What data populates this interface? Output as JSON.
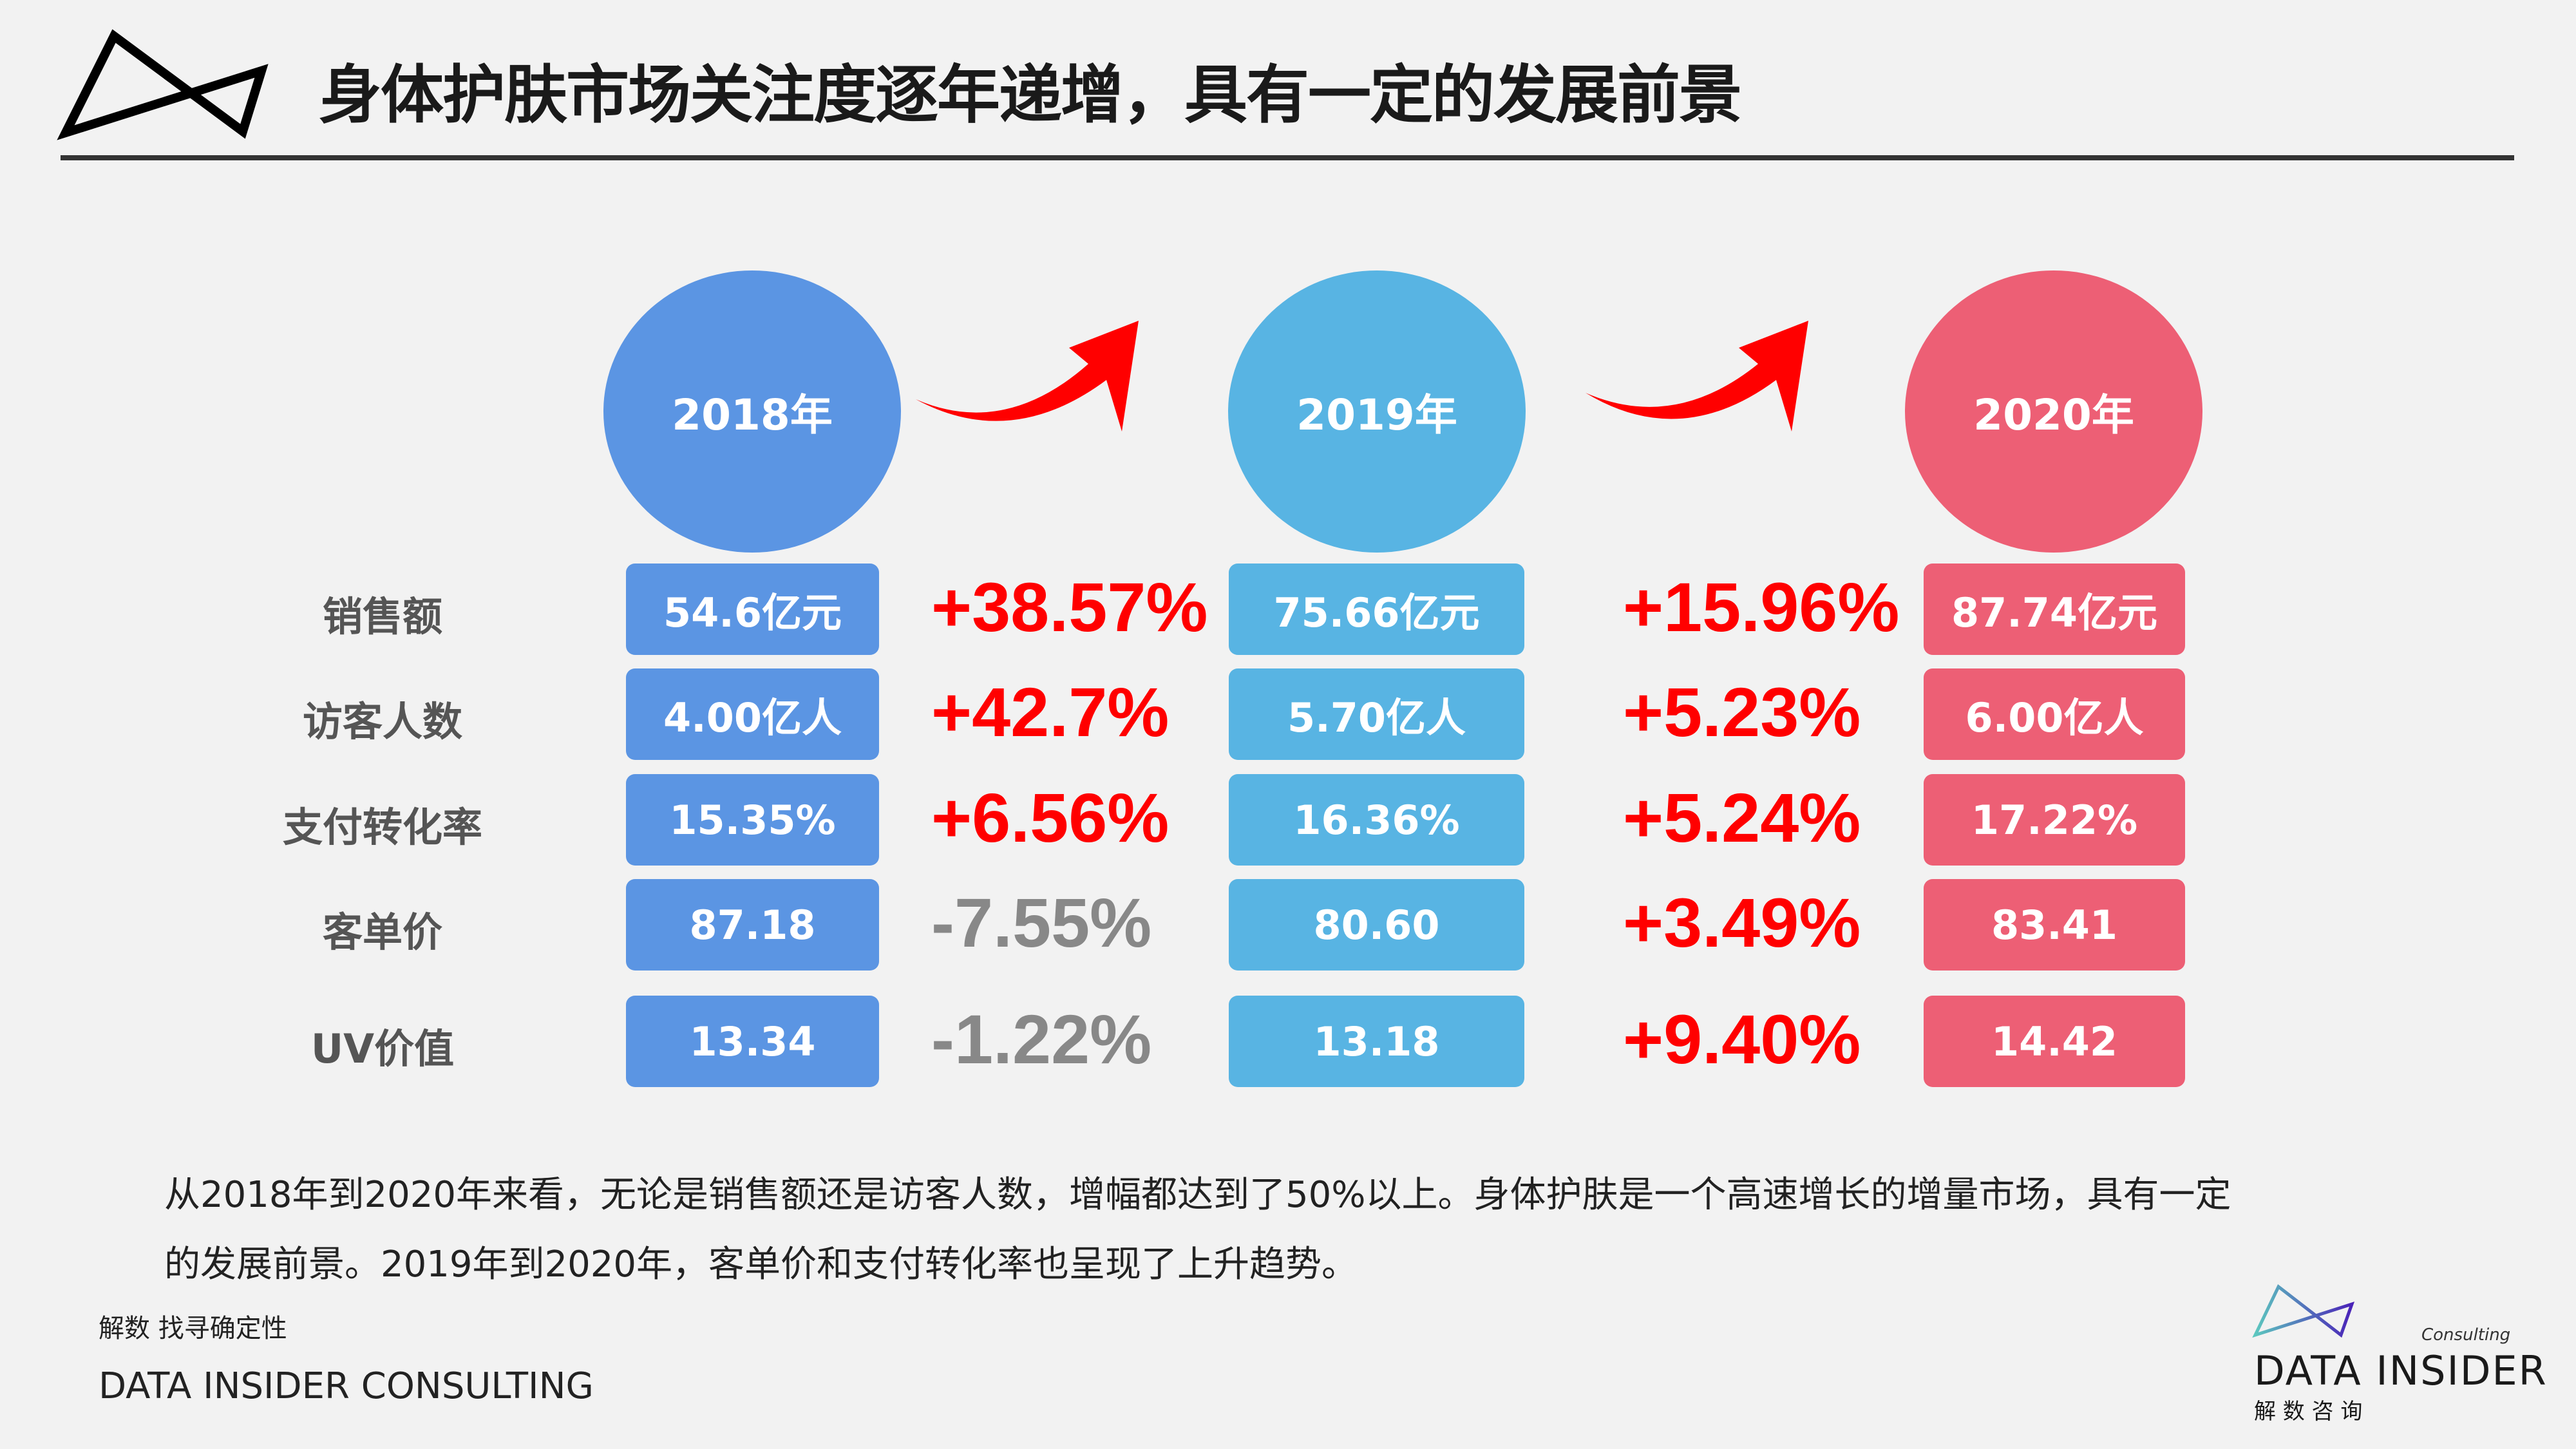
{
  "header": {
    "title": "身体护肤市场关注度逐年递增，具有一定的发展前景"
  },
  "colors": {
    "y2018": "#5b95e3",
    "y2019": "#58b4e3",
    "y2020": "#ed5f75",
    "up": "#ff0000",
    "down": "#888888"
  },
  "years": [
    "2018年",
    "2019年",
    "2020年"
  ],
  "metrics": [
    "销售额",
    "访客人数",
    "支付转化率",
    "客单价",
    "UV价值"
  ],
  "values": {
    "y2018": [
      "54.6亿元",
      "4.00亿人",
      "15.35%",
      "87.18",
      "13.34"
    ],
    "y2019": [
      "75.66亿元",
      "5.70亿人",
      "16.36%",
      "80.60",
      "13.18"
    ],
    "y2020": [
      "87.74亿元",
      "6.00亿人",
      "17.22%",
      "83.41",
      "14.42"
    ]
  },
  "changes": {
    "c2018_2019": [
      "+38.57%",
      "+42.7%",
      "+6.56%",
      "-7.55%",
      "-1.22%"
    ],
    "c2019_2020": [
      "+15.96%",
      "+5.23%",
      "+5.24%",
      "+3.49%",
      "+9.40%"
    ]
  },
  "summary": {
    "line1": "从2018年到2020年来看，无论是销售额还是访客人数，增幅都达到了50%以上。身体护肤是一个高速增长的增量市场，具有一定",
    "line2": "的发展前景。2019年到2020年，客单价和支付转化率也呈现了上升趋势。"
  },
  "footer": {
    "slogan": "解数 找寻确定性",
    "company": "DATA INSIDER CONSULTING"
  },
  "brand": {
    "consulting": "Consulting",
    "name": "DATA INSIDER",
    "cn": "解 数 咨 询"
  }
}
